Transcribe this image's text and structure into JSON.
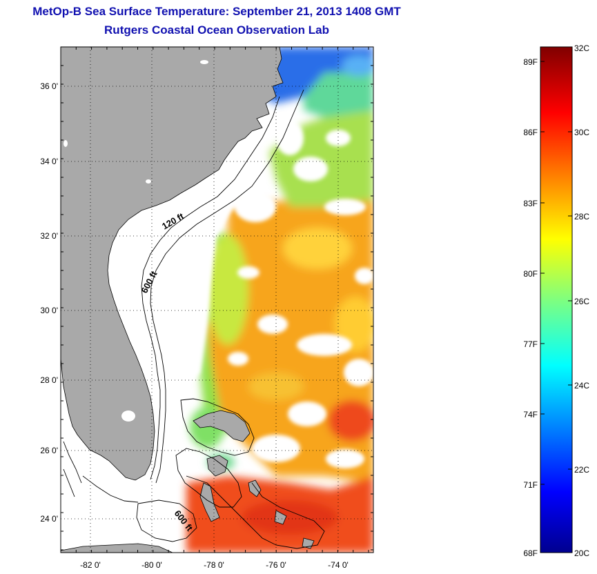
{
  "title_line1": "MetOp-B Sea Surface Temperature:  September 21, 2013 1408 GMT",
  "title_line2": "Rutgers Coastal Ocean Observation Lab",
  "map": {
    "lat_ticks": [
      "36 0'",
      "34 0'",
      "32 0'",
      "30 0'",
      "28 0'",
      "26 0'",
      "24 0'"
    ],
    "lon_ticks": [
      "-82 0'",
      "-80 0'",
      "-78 0'",
      "-76 0'",
      "-74 0'"
    ],
    "isobath_labels": [
      "120 ft",
      "600 ft",
      "600 ft"
    ],
    "land_color": "#a9a9a9",
    "no_data_color": "#ffffff"
  },
  "colorbar": {
    "fahrenheit_labels": [
      "89F",
      "86F",
      "83F",
      "80F",
      "77F",
      "74F",
      "71F",
      "68F"
    ],
    "celsius_labels": [
      "32C",
      "30C",
      "28C",
      "26C",
      "24C",
      "22C",
      "20C"
    ],
    "colormap": "jet"
  }
}
